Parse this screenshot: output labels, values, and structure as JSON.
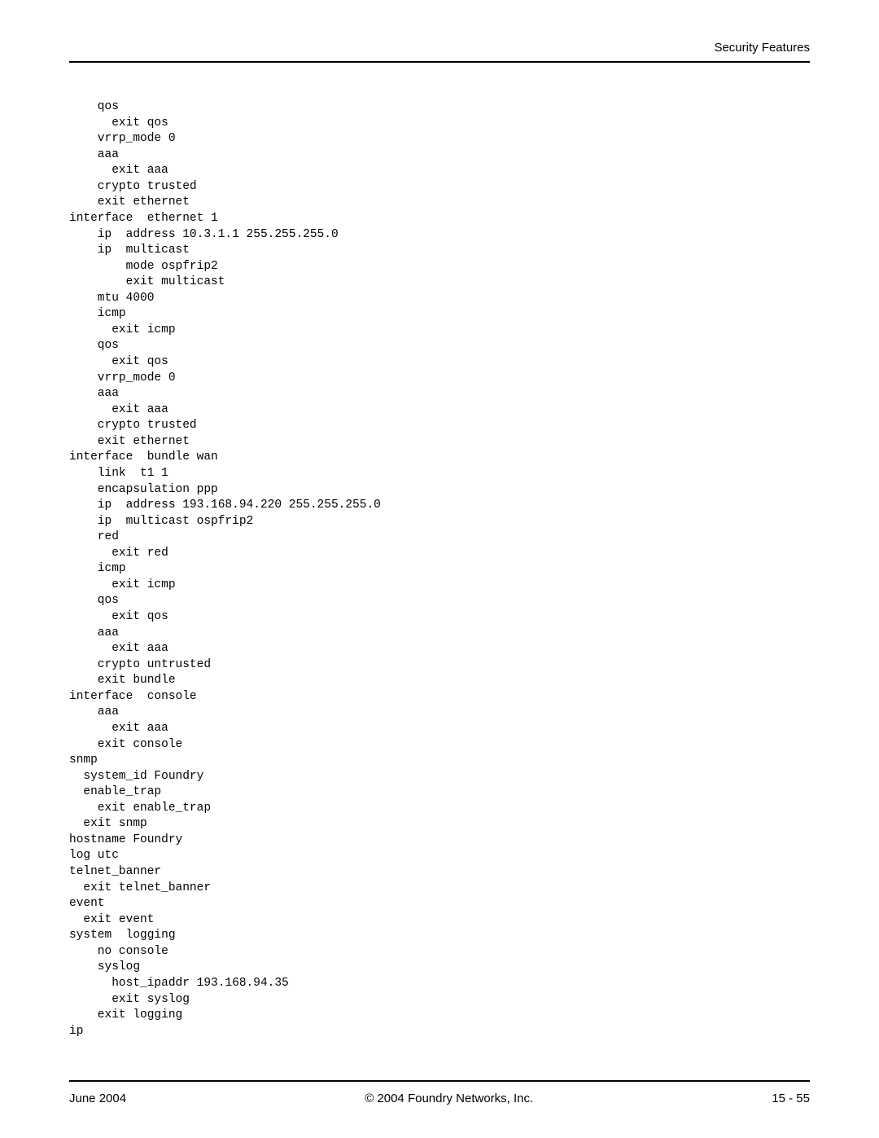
{
  "header": {
    "title": "Security Features"
  },
  "content": {
    "lines": [
      "    qos",
      "      exit qos",
      "    vrrp_mode 0",
      "    aaa",
      "      exit aaa",
      "    crypto trusted",
      "    exit ethernet",
      "interface  ethernet 1",
      "    ip  address 10.3.1.1 255.255.255.0",
      "    ip  multicast",
      "        mode ospfrip2",
      "        exit multicast",
      "    mtu 4000",
      "    icmp",
      "      exit icmp",
      "    qos",
      "      exit qos",
      "    vrrp_mode 0",
      "    aaa",
      "      exit aaa",
      "    crypto trusted",
      "    exit ethernet",
      "interface  bundle wan",
      "    link  t1 1",
      "    encapsulation ppp",
      "    ip  address 193.168.94.220 255.255.255.0",
      "    ip  multicast ospfrip2",
      "    red",
      "      exit red",
      "    icmp",
      "      exit icmp",
      "    qos",
      "      exit qos",
      "    aaa",
      "      exit aaa",
      "    crypto untrusted",
      "    exit bundle",
      "interface  console",
      "    aaa",
      "      exit aaa",
      "    exit console",
      "snmp",
      "  system_id Foundry",
      "  enable_trap",
      "    exit enable_trap",
      "  exit snmp",
      "hostname Foundry",
      "log utc",
      "telnet_banner",
      "  exit telnet_banner",
      "event",
      "  exit event",
      "system  logging",
      "    no console",
      "    syslog",
      "      host_ipaddr 193.168.94.35",
      "      exit syslog",
      "    exit logging",
      "ip"
    ]
  },
  "footer": {
    "left": "June 2004",
    "center": "© 2004 Foundry Networks, Inc.",
    "right": "15 - 55"
  }
}
